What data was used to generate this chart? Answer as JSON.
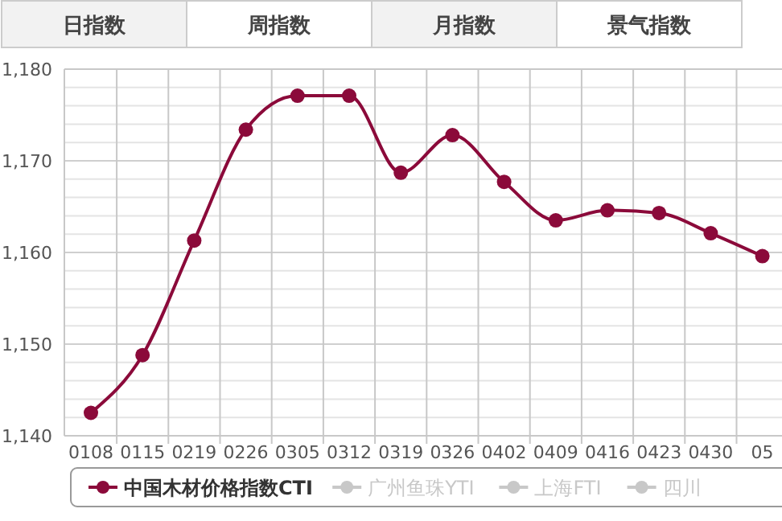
{
  "chart_data": {
    "type": "line",
    "categories": [
      "0108",
      "0115",
      "0219",
      "0226",
      "0305",
      "0312",
      "0319",
      "0326",
      "0402",
      "0409",
      "0416",
      "0423",
      "0430",
      "05"
    ],
    "series": [
      {
        "name": "中国木材价格指数CTI",
        "color": "#8b0a3a",
        "values": [
          1142.5,
          1148.8,
          1161.3,
          1173.4,
          1177.1,
          1177.1,
          1168.7,
          1172.8,
          1167.7,
          1163.5,
          1164.6,
          1164.3,
          1162.1,
          1159.6
        ]
      },
      {
        "name": "广州鱼珠YTI",
        "color": "#c8c8c8",
        "values": [
          null,
          null,
          null,
          null,
          null,
          null,
          null,
          null,
          null,
          null,
          null,
          null,
          null,
          null
        ]
      },
      {
        "name": "上海FTI",
        "color": "#c8c8c8",
        "values": [
          null,
          null,
          null,
          null,
          null,
          null,
          null,
          null,
          null,
          null,
          null,
          null,
          null,
          null
        ]
      },
      {
        "name": "四川",
        "color": "#c8c8c8",
        "values": [
          null,
          null,
          null,
          null,
          null,
          null,
          null,
          null,
          null,
          null,
          null,
          null,
          null,
          null
        ]
      }
    ],
    "ylim": [
      1140,
      1180
    ],
    "yticks": [
      {
        "value": 1140,
        "label": "1,140"
      },
      {
        "value": 1142,
        "label": null
      },
      {
        "value": 1144,
        "label": null
      },
      {
        "value": 1146,
        "label": null
      },
      {
        "value": 1148,
        "label": null
      },
      {
        "value": 1150,
        "label": "1,150"
      },
      {
        "value": 1152,
        "label": null
      },
      {
        "value": 1154,
        "label": null
      },
      {
        "value": 1156,
        "label": null
      },
      {
        "value": 1158,
        "label": null
      },
      {
        "value": 1160,
        "label": "1,160"
      },
      {
        "value": 1162,
        "label": null
      },
      {
        "value": 1164,
        "label": null
      },
      {
        "value": 1166,
        "label": null
      },
      {
        "value": 1168,
        "label": null
      },
      {
        "value": 1170,
        "label": "1,170"
      },
      {
        "value": 1172,
        "label": null
      },
      {
        "value": 1174,
        "label": null
      },
      {
        "value": 1176,
        "label": null
      },
      {
        "value": 1178,
        "label": null
      },
      {
        "value": 1180,
        "label": "1,180"
      }
    ],
    "grid": true,
    "marker": "circle",
    "legend": "bottom",
    "annotations": [
      "日指数",
      "周指数",
      "月指数",
      "景气指数"
    ]
  }
}
